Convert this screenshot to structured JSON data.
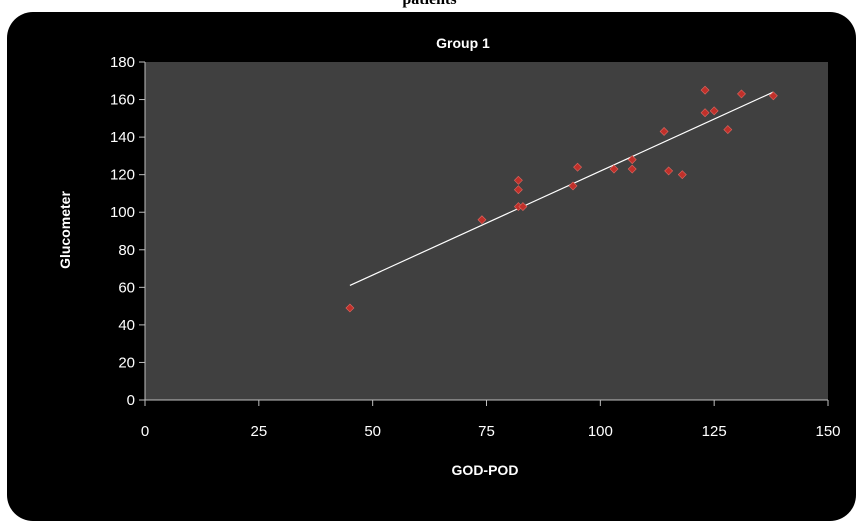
{
  "page_top_text": "patients",
  "chart_data": {
    "type": "scatter",
    "title": "Group 1",
    "xlabel": "GOD-POD",
    "ylabel": "Glucometer",
    "xlim": [
      0,
      150
    ],
    "ylim": [
      0,
      180
    ],
    "xticks": [
      0,
      25,
      50,
      75,
      100,
      125,
      150
    ],
    "yticks": [
      0,
      20,
      40,
      60,
      80,
      100,
      120,
      140,
      160,
      180
    ],
    "grid": false,
    "series": [
      {
        "points": [
          [
            45,
            49
          ],
          [
            74,
            96
          ],
          [
            82,
            117
          ],
          [
            82,
            112
          ],
          [
            82,
            103
          ],
          [
            83,
            103
          ],
          [
            94,
            114
          ],
          [
            95,
            124
          ],
          [
            103,
            123
          ],
          [
            107,
            128
          ],
          [
            107,
            123
          ],
          [
            114,
            143
          ],
          [
            115,
            122
          ],
          [
            118,
            120
          ],
          [
            123,
            165
          ],
          [
            123,
            153
          ],
          [
            125,
            154
          ],
          [
            128,
            144
          ],
          [
            131,
            163
          ],
          [
            138,
            162
          ]
        ]
      }
    ],
    "trendline": {
      "type": "linear",
      "x": [
        45,
        138
      ],
      "y": [
        61,
        164
      ]
    },
    "colors": {
      "background": "#000000",
      "plot_area": "#404040",
      "marker": "#c0302a",
      "trendline": "#ffffff",
      "text": "#ffffff"
    }
  }
}
